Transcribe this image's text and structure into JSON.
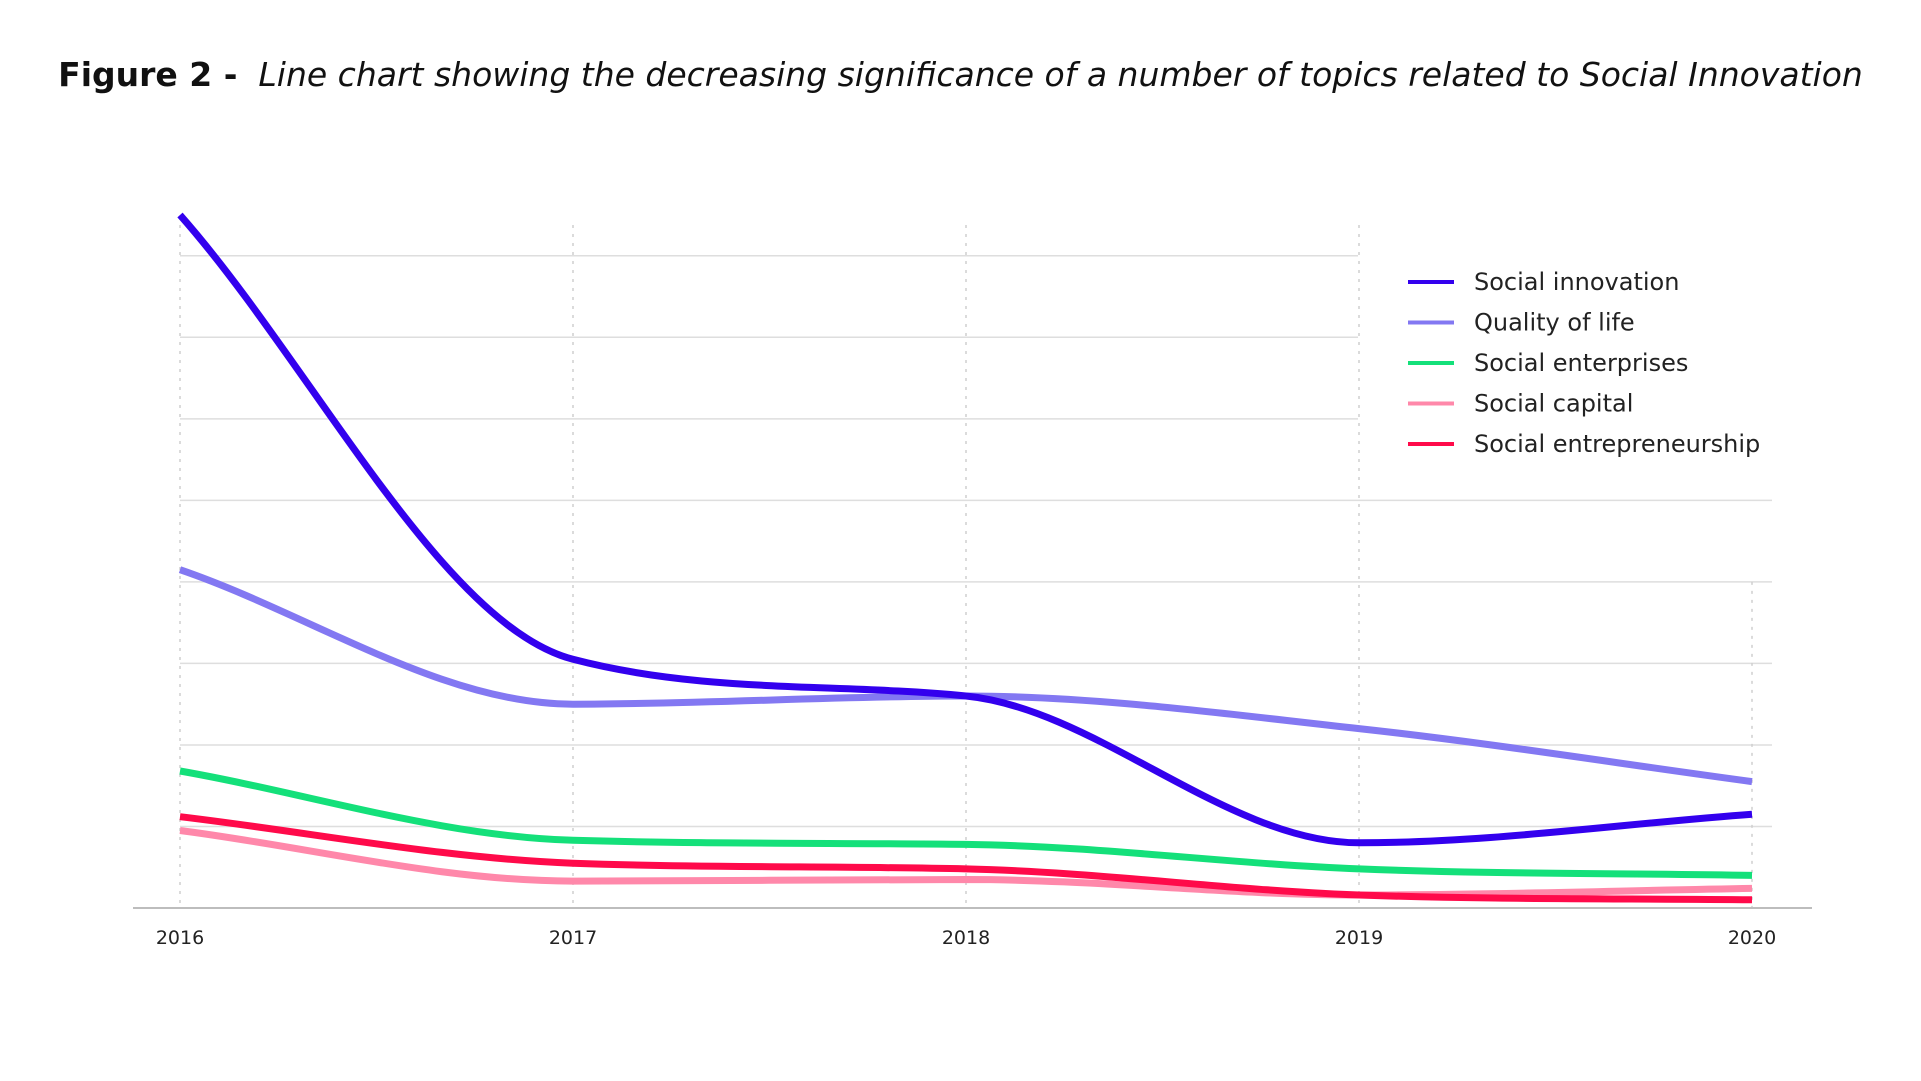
{
  "figure": {
    "label": "Figure 2 -",
    "caption": "Line chart showing the decreasing significance of a number of topics related to Social Innovation"
  },
  "chart_data": {
    "type": "line",
    "title": "Figure 2 - Line chart showing the decreasing significance of a number of topics related to Social Innovation",
    "xlabel": "",
    "ylabel": "",
    "x": [
      "2016",
      "2017",
      "2018",
      "2019",
      "2020"
    ],
    "ylim": [
      0,
      850
    ],
    "y_gridlines": [
      100,
      200,
      300,
      400,
      500,
      600,
      700,
      800
    ],
    "grid": true,
    "y_tick_labels_shown": false,
    "legend_position": "top-right",
    "series": [
      {
        "name": "Social innovation",
        "color": "#3300EE",
        "values": [
          850,
          305,
          260,
          80,
          115
        ]
      },
      {
        "name": "Quality of life",
        "color": "#8378F2",
        "values": [
          415,
          250,
          260,
          220,
          155
        ]
      },
      {
        "name": "Social enterprises",
        "color": "#14E07A",
        "values": [
          168,
          83,
          78,
          48,
          40
        ]
      },
      {
        "name": "Social capital",
        "color": "#FF88AA",
        "values": [
          95,
          33,
          35,
          16,
          24
        ]
      },
      {
        "name": "Social entrepreneurship",
        "color": "#FF0A4A",
        "values": [
          112,
          55,
          48,
          16,
          10
        ]
      }
    ]
  }
}
